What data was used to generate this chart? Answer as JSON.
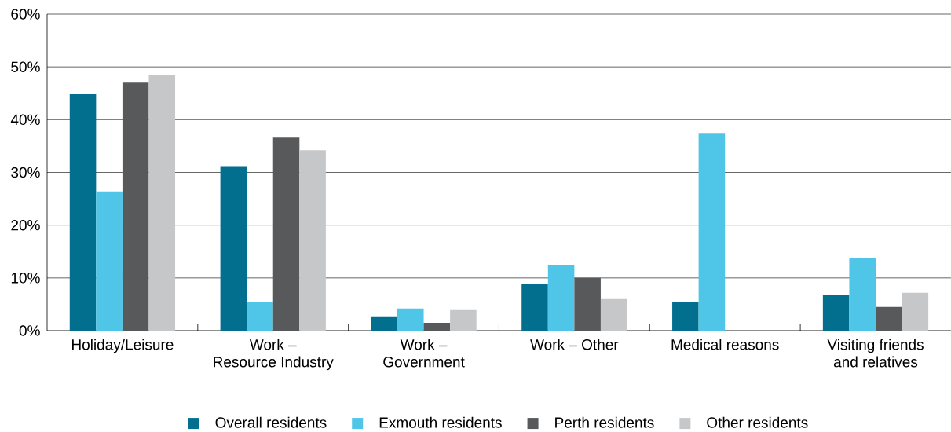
{
  "chart_data": {
    "type": "bar",
    "categories": [
      "Holiday/Leisure",
      "Work –\nResource Industry",
      "Work –\nGovernment",
      "Work – Other",
      "Medical reasons",
      "Visiting friends\nand relatives"
    ],
    "series": [
      {
        "name": "Overall residents",
        "color": "#036f8e",
        "values": [
          44.8,
          31.2,
          2.7,
          8.8,
          5.4,
          6.7
        ]
      },
      {
        "name": "Exmouth residents",
        "color": "#4fc6e8",
        "values": [
          26.4,
          5.5,
          4.2,
          12.5,
          37.5,
          13.8
        ]
      },
      {
        "name": "Perth residents",
        "color": "#58595b",
        "values": [
          47.0,
          36.6,
          1.5,
          10.0,
          0,
          4.5
        ]
      },
      {
        "name": "Other residents",
        "color": "#c6c7c8",
        "values": [
          48.5,
          34.2,
          3.9,
          6.0,
          0,
          7.2
        ]
      }
    ],
    "ylim": [
      0,
      60
    ],
    "yticks": [
      {
        "value": 0,
        "label": "0%"
      },
      {
        "value": 10,
        "label": "10%"
      },
      {
        "value": 20,
        "label": "20%"
      },
      {
        "value": 30,
        "label": "30%"
      },
      {
        "value": 40,
        "label": "40%"
      },
      {
        "value": 50,
        "label": "50%"
      },
      {
        "value": 60,
        "label": "60%"
      }
    ],
    "grid": "y",
    "legend": "bottom"
  }
}
